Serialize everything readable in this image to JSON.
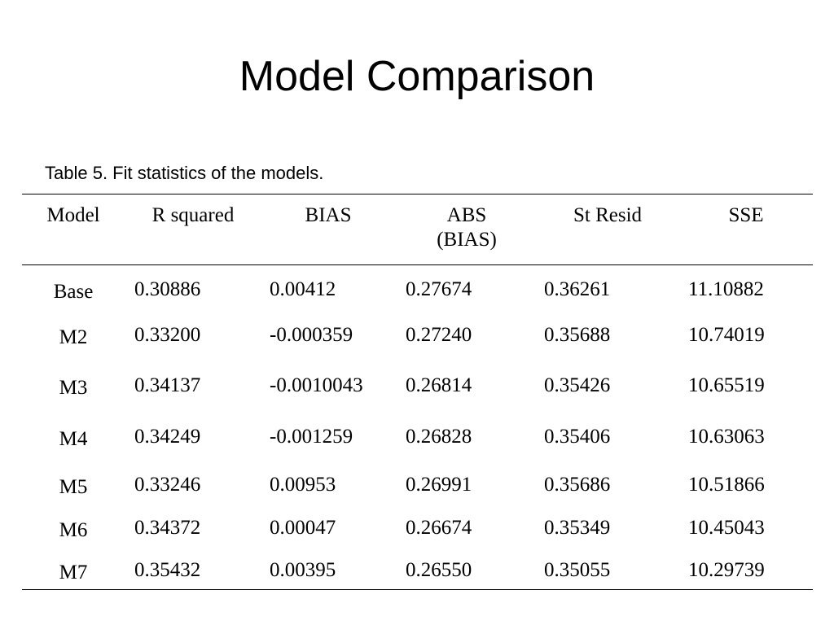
{
  "title": "Model Comparison",
  "table": {
    "caption": "Table 5. Fit statistics of the models.",
    "headers": [
      "Model",
      "R squared",
      "BIAS",
      "ABS (BIAS)",
      "St Resid",
      "SSE"
    ],
    "rows": [
      [
        "Base",
        "0.30886",
        "0.00412",
        "0.27674",
        "0.36261",
        "11.10882"
      ],
      [
        "M2",
        "0.33200",
        "-0.000359",
        "0.27240",
        "0.35688",
        "10.74019"
      ],
      [
        "M3",
        "0.34137",
        "-0.0010043",
        "0.26814",
        "0.35426",
        "10.65519"
      ],
      [
        "M4",
        "0.34249",
        "-0.001259",
        "0.26828",
        "0.35406",
        "10.63063"
      ],
      [
        "M5",
        "0.33246",
        "0.00953",
        "0.26991",
        "0.35686",
        "10.51866"
      ],
      [
        "M6",
        "0.34372",
        "0.00047",
        "0.26674",
        "0.35349",
        "10.45043"
      ],
      [
        "M7",
        "0.35432",
        "0.00395",
        "0.26550",
        "0.35055",
        "10.29739"
      ]
    ]
  }
}
